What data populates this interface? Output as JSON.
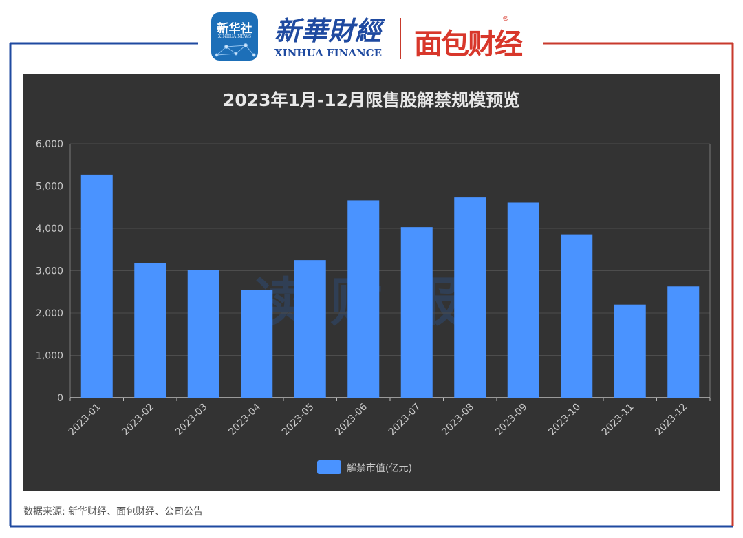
{
  "header": {
    "xinhua_news_logo": {
      "text_cn": "新华社",
      "text_en": "XINHUA NEWS"
    },
    "xinhua_finance_logo": {
      "text_cn": "新華財經",
      "text_en": "XINHUA FINANCE"
    },
    "mianbao_logo": {
      "text_cn": "面包财经",
      "reg_mark": "®"
    }
  },
  "colors": {
    "frame_left": "#1f4aa0",
    "frame_right": "#c83a2c",
    "panel_bg": "#333333",
    "bar": "#4a93ff",
    "axis_text": "#c9c9c9",
    "gridline": "#4d4d4d",
    "watermark": "#2f4a72"
  },
  "chart_data": {
    "type": "bar",
    "title": "2023年1月-12月限售股解禁规模预览",
    "categories": [
      "2023-01",
      "2023-02",
      "2023-03",
      "2023-04",
      "2023-05",
      "2023-06",
      "2023-07",
      "2023-08",
      "2023-09",
      "2023-10",
      "2023-11",
      "2023-12"
    ],
    "series": [
      {
        "name": "解禁市值(亿元)",
        "values": [
          5270,
          3180,
          3020,
          2550,
          3250,
          4660,
          4030,
          4730,
          4610,
          3860,
          2200,
          2630
        ]
      }
    ],
    "ylim": [
      0,
      6000
    ],
    "y_ticks": [
      "0",
      "1,000",
      "2,000",
      "3,000",
      "4,000",
      "5,000",
      "6,000"
    ],
    "grid": true,
    "legend": "bottom-center",
    "watermark": "读财报"
  },
  "footer": {
    "source": "数据来源: 新华财经、面包财经、公司公告"
  }
}
